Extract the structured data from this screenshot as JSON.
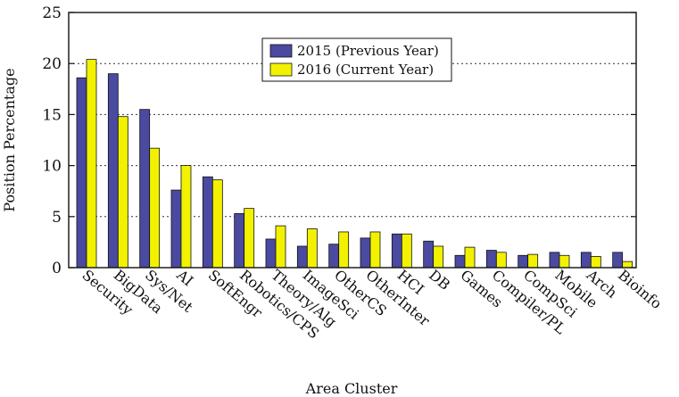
{
  "chart_data": {
    "type": "bar",
    "xlabel": "Area Cluster",
    "ylabel": "Position Percentage",
    "ylim": [
      0,
      25
    ],
    "yticks": [
      0,
      5,
      10,
      15,
      20,
      25
    ],
    "grid": "horizontal dashed",
    "legend_position": "top-center",
    "categories": [
      "Security",
      "BigData",
      "Sys/Net",
      "AI",
      "SoftEngr",
      "Robotics/CPS",
      "Theory/Alg",
      "ImageSci",
      "OtherCS",
      "OtherInter",
      "HCI",
      "DB",
      "Games",
      "Compiler/PL",
      "CompSci",
      "Mobile",
      "Arch",
      "Bioinfo"
    ],
    "series": [
      {
        "name": "2015 (Previous Year)",
        "color": "#4a4aa0",
        "values": [
          18.6,
          19.0,
          15.5,
          7.6,
          8.9,
          5.3,
          2.8,
          2.1,
          2.3,
          2.9,
          3.3,
          2.6,
          1.2,
          1.7,
          1.2,
          1.5,
          1.5,
          1.5
        ]
      },
      {
        "name": "2016 (Current Year)",
        "color": "#f2f200",
        "values": [
          20.4,
          14.8,
          11.7,
          10.0,
          8.6,
          5.8,
          4.1,
          3.8,
          3.5,
          3.5,
          3.3,
          2.1,
          2.0,
          1.5,
          1.3,
          1.2,
          1.1,
          0.6
        ]
      }
    ]
  }
}
